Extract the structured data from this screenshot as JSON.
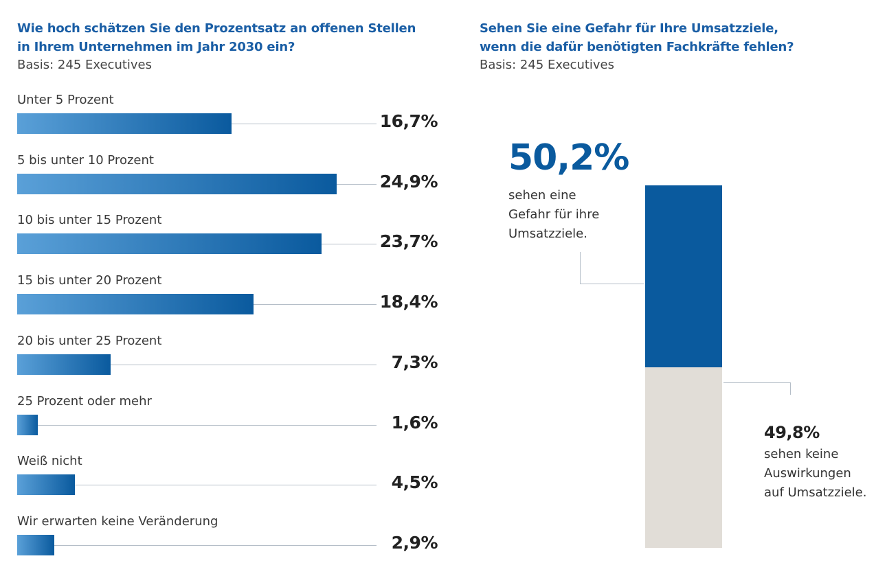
{
  "chart_data": [
    {
      "type": "bar",
      "orientation": "horizontal",
      "title": "Wie hoch schätzen Sie den Prozentsatz an offenen Stellen in Ihrem Unternehmen im Jahr 2030 ein?",
      "title_lines": [
        "Wie hoch schätzen Sie den Prozentsatz an offenen Stellen",
        "in Ihrem Unternehmen im Jahr 2030 ein?"
      ],
      "subtitle": "Basis: 245 Executives",
      "categories": [
        "Unter 5 Prozent",
        "5 bis unter 10 Prozent",
        "10 bis unter 15 Prozent",
        "15 bis unter 20 Prozent",
        "20 bis unter 25 Prozent",
        "25 Prozent oder mehr",
        "Weiß nicht",
        "Wir erwarten keine Veränderung"
      ],
      "values": [
        16.7,
        24.9,
        23.7,
        18.4,
        7.3,
        1.6,
        4.5,
        2.9
      ],
      "labels": [
        "16,7%",
        "24,9%",
        "23,7%",
        "18,4%",
        "7,3%",
        "1,6%",
        "4,5%",
        "2,9%"
      ],
      "colors": {
        "gradient_start": "#5aa0d8",
        "gradient_end": "#0a5a9e"
      }
    },
    {
      "type": "bar",
      "orientation": "stacked-vertical",
      "title": "Sehen Sie eine Gefahr für Ihre Umsatzziele, wenn die dafür benötigten Fachkräfte fehlen?",
      "title_lines": [
        "Sehen Sie eine Gefahr für Ihre Umsatzziele,",
        "wenn die dafür benötigten Fachkräfte fehlen?"
      ],
      "subtitle": "Basis: 245 Executives",
      "segments": [
        {
          "value": 50.2,
          "label": "50,2%",
          "text_lines": [
            "sehen eine",
            "Gefahr für ihre",
            "Umsatzziele."
          ],
          "color": "#0a5a9e"
        },
        {
          "value": 49.8,
          "label": "49,8%",
          "text_lines": [
            "sehen keine",
            "Auswirkungen",
            "auf Umsatzziele."
          ],
          "color": "#e1ddd7"
        }
      ]
    }
  ]
}
